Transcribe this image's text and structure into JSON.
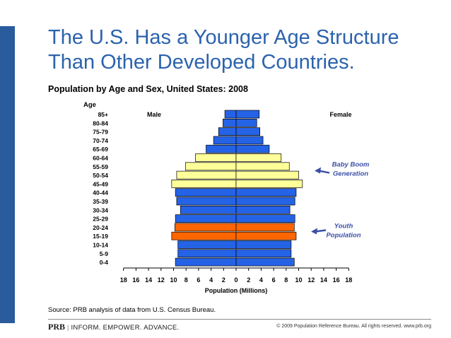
{
  "slide": {
    "title_line1": "The U.S. Has a Younger Age Structure",
    "title_line2": "Than Other Developed Countries.",
    "source": "Source: PRB analysis of data from U.S. Census Bureau.",
    "footer_brand": "PRB",
    "footer_separator": "|",
    "footer_tagline": "INFORM. EMPOWER. ADVANCE.",
    "copyright": "© 2009 Population Reference Bureau. All rights reserved. www.prb.org"
  },
  "chart_data": {
    "type": "bar",
    "orientation": "horizontal-pyramid",
    "title": "Population by Age and Sex, United States: 2008",
    "ylabel": "Age",
    "xlabel": "Population (Millions)",
    "xlim": [
      -18,
      18
    ],
    "x_ticks": [
      18,
      16,
      14,
      12,
      10,
      8,
      6,
      4,
      2,
      0,
      2,
      4,
      6,
      8,
      10,
      12,
      14,
      16,
      18
    ],
    "categories": [
      "85+",
      "80-84",
      "75-79",
      "70-74",
      "65-69",
      "60-64",
      "55-59",
      "50-54",
      "45-49",
      "40-44",
      "35-39",
      "30-34",
      "25-29",
      "20-24",
      "15-19",
      "10-14",
      "5-9",
      "0-4"
    ],
    "series": [
      {
        "name": "Male",
        "values": [
          1.8,
          2.1,
          2.8,
          3.6,
          4.8,
          6.5,
          8.1,
          9.5,
          10.3,
          9.7,
          9.5,
          8.9,
          9.7,
          9.8,
          10.3,
          9.3,
          9.3,
          9.7
        ]
      },
      {
        "name": "Female",
        "values": [
          3.7,
          3.3,
          3.8,
          4.3,
          5.3,
          7.2,
          8.5,
          10.0,
          10.6,
          9.6,
          9.4,
          8.6,
          9.4,
          9.3,
          9.6,
          8.8,
          8.8,
          9.3
        ]
      }
    ],
    "highlight_colors": {
      "default": "#2563e6",
      "baby_boom": "#ffff99",
      "youth": "#ff6600",
      "axis": "#000000",
      "annotation": "#3b4fa6"
    },
    "highlights": [
      {
        "ages": [
          "60-64",
          "55-59",
          "50-54",
          "45-49"
        ],
        "color_key": "baby_boom",
        "label_line1": "Baby Boom",
        "label_line2": "Generation"
      },
      {
        "ages": [
          "20-24",
          "15-19"
        ],
        "color_key": "youth",
        "label_line1": "Youth",
        "label_line2": "Population"
      }
    ],
    "legend": {
      "male": "Male",
      "female": "Female"
    }
  }
}
